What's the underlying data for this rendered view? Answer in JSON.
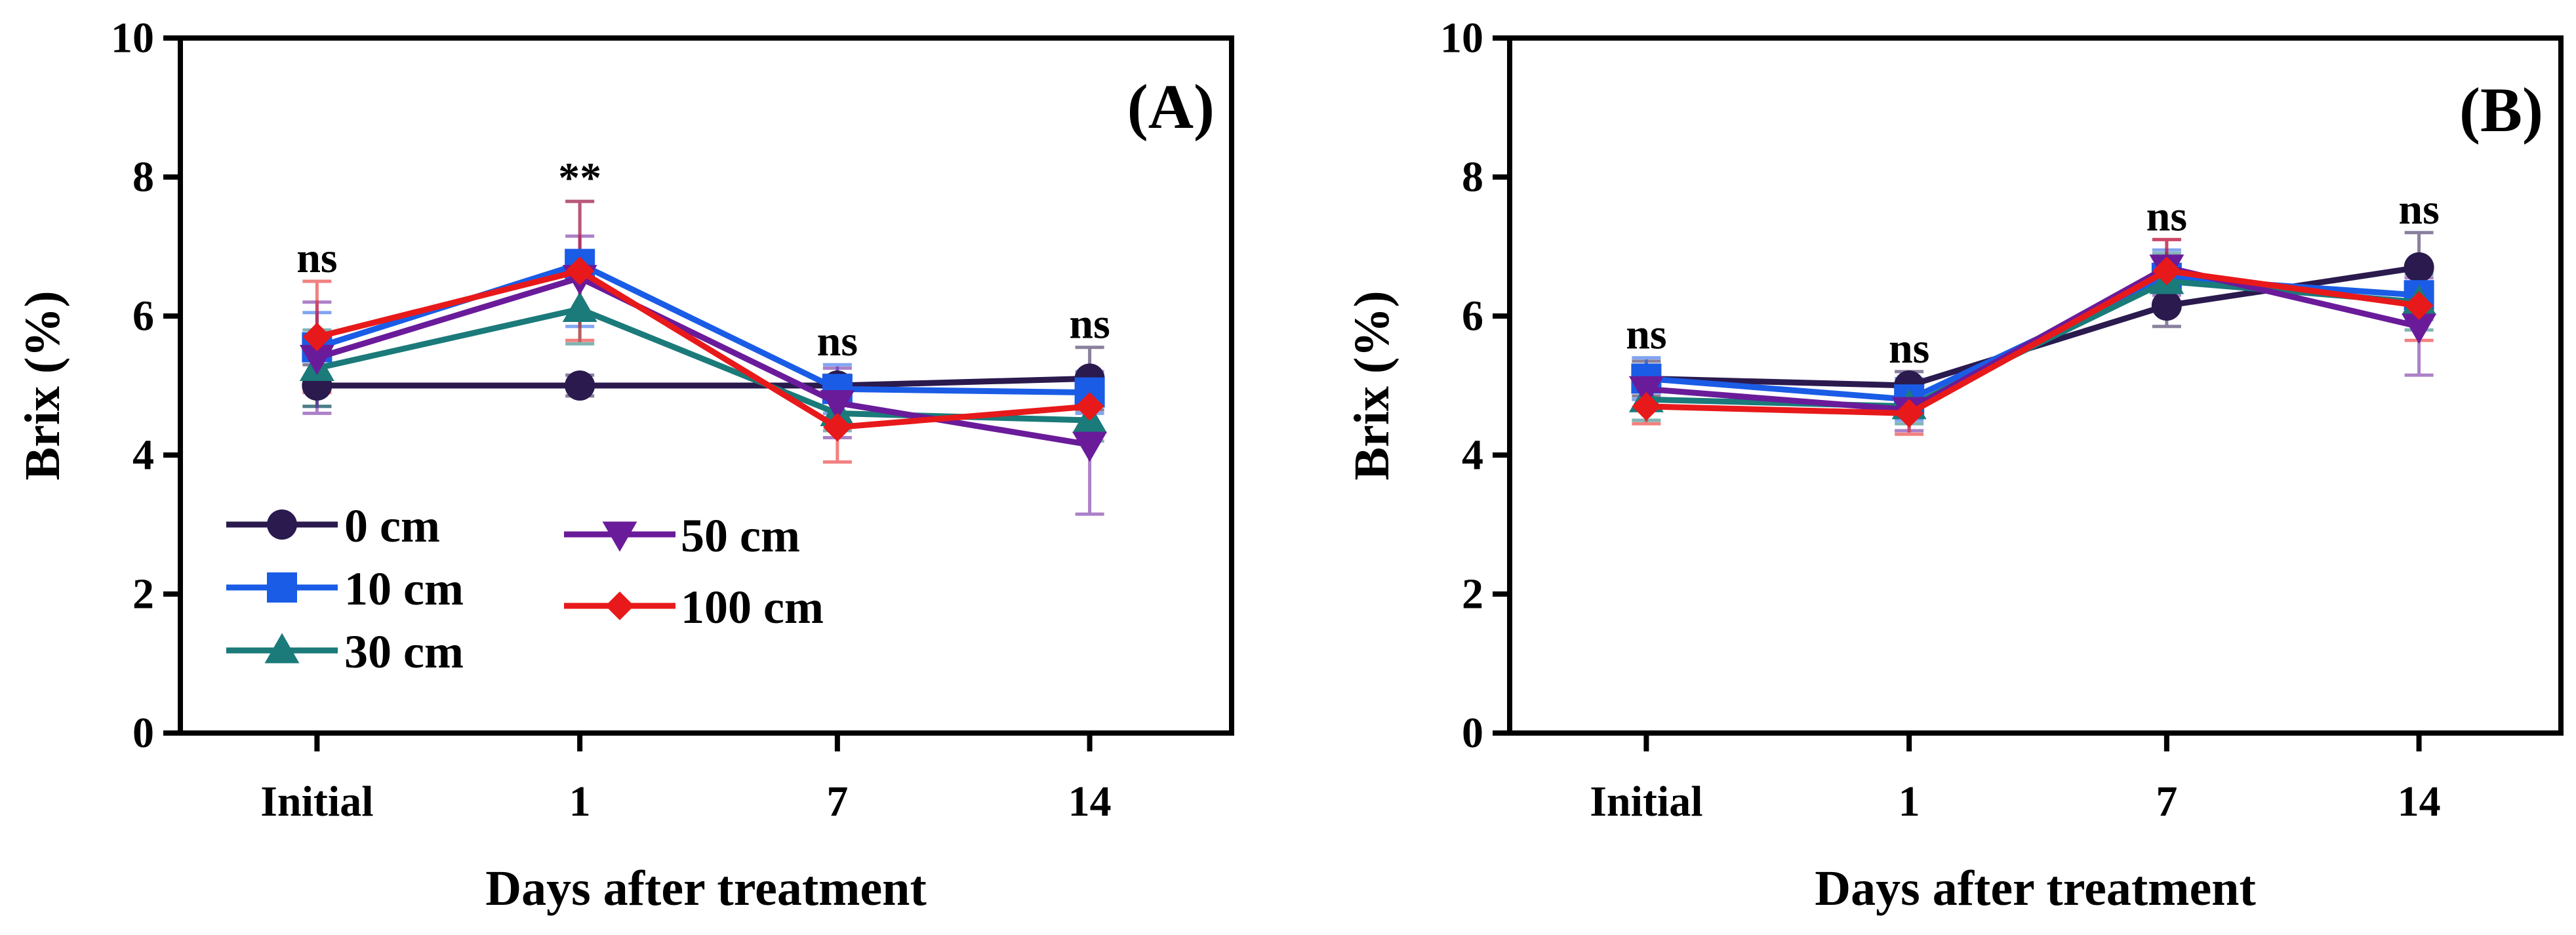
{
  "chart_data": [
    {
      "type": "line",
      "panel_label": "(A)",
      "xlabel": "Days after treatment",
      "ylabel": "Brix (%)",
      "categories": [
        "Initial",
        "1",
        "7",
        "14"
      ],
      "ylim": [
        0,
        10
      ],
      "yticks": [
        "0",
        "2",
        "4",
        "6",
        "8",
        "10"
      ],
      "significance": [
        "ns",
        "**",
        "ns",
        "ns"
      ],
      "legend": {
        "placement": "bottom-left",
        "entries": [
          "0 cm",
          "10 cm",
          "30 cm",
          "50 cm",
          "100 cm"
        ]
      },
      "series": [
        {
          "name": "0 cm",
          "color": "#2a1a4e",
          "marker": "circle",
          "values": [
            5.0,
            5.0,
            5.0,
            5.1
          ],
          "errors": [
            0.3,
            0.15,
            0.15,
            0.45
          ]
        },
        {
          "name": "10 cm",
          "color": "#1a5ce6",
          "marker": "square",
          "values": [
            5.55,
            6.75,
            4.95,
            4.9
          ],
          "errors": [
            0.5,
            0.9,
            0.35,
            0.3
          ]
        },
        {
          "name": "30 cm",
          "color": "#1b7a7a",
          "marker": "triangle-up",
          "values": [
            5.25,
            6.1,
            4.6,
            4.5
          ],
          "errors": [
            0.55,
            0.5,
            0.25,
            0.3
          ]
        },
        {
          "name": "50 cm",
          "color": "#6a1b9a",
          "marker": "triangle-down",
          "values": [
            5.4,
            6.55,
            4.75,
            4.15
          ],
          "errors": [
            0.8,
            0.6,
            0.5,
            1.0
          ]
        },
        {
          "name": "100 cm",
          "color": "#e8191a",
          "marker": "diamond",
          "values": [
            5.7,
            6.65,
            4.4,
            4.7
          ],
          "errors": [
            0.8,
            1.0,
            0.5,
            0.4
          ]
        }
      ]
    },
    {
      "type": "line",
      "panel_label": "(B)",
      "xlabel": "Days after treatment",
      "ylabel": "Brix (%)",
      "categories": [
        "Initial",
        "1",
        "7",
        "14"
      ],
      "ylim": [
        0,
        10
      ],
      "yticks": [
        "0",
        "2",
        "4",
        "6",
        "8",
        "10"
      ],
      "significance": [
        "ns",
        "ns",
        "ns",
        "ns"
      ],
      "series": [
        {
          "name": "0 cm",
          "color": "#2a1a4e",
          "marker": "circle",
          "values": [
            5.1,
            5.0,
            6.15,
            6.7
          ],
          "errors": [
            0.25,
            0.2,
            0.3,
            0.5
          ]
        },
        {
          "name": "10 cm",
          "color": "#1a5ce6",
          "marker": "square",
          "values": [
            5.1,
            4.8,
            6.55,
            6.3
          ],
          "errors": [
            0.3,
            0.3,
            0.4,
            0.35
          ]
        },
        {
          "name": "30 cm",
          "color": "#1b7a7a",
          "marker": "triangle-up",
          "values": [
            4.8,
            4.7,
            6.5,
            6.2
          ],
          "errors": [
            0.3,
            0.25,
            0.4,
            0.4
          ]
        },
        {
          "name": "50 cm",
          "color": "#6a1b9a",
          "marker": "triangle-down",
          "values": [
            4.95,
            4.65,
            6.7,
            5.85
          ],
          "errors": [
            0.3,
            0.3,
            0.4,
            0.7
          ]
        },
        {
          "name": "100 cm",
          "color": "#e8191a",
          "marker": "diamond",
          "values": [
            4.7,
            4.6,
            6.65,
            6.15
          ],
          "errors": [
            0.25,
            0.3,
            0.45,
            0.5
          ]
        }
      ]
    }
  ]
}
